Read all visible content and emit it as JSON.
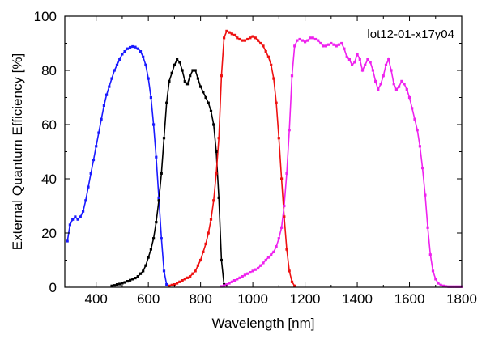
{
  "chart_data": {
    "type": "line",
    "title": "",
    "annotation": "lot12-01-x17y04",
    "xlabel": "Wavelength [nm]",
    "ylabel": "External Quantum Efficiency [%]",
    "xlim": [
      280,
      1800
    ],
    "ylim": [
      0,
      100
    ],
    "xticks": [
      400,
      600,
      800,
      1000,
      1200,
      1400,
      1600,
      1800
    ],
    "yticks": [
      0,
      20,
      40,
      60,
      80,
      100
    ],
    "grid": false,
    "legend": "none",
    "marker": "square",
    "series": [
      {
        "color": "#1a1aff",
        "x": [
          290,
          300,
          310,
          320,
          330,
          340,
          350,
          360,
          370,
          380,
          390,
          400,
          410,
          420,
          430,
          440,
          450,
          460,
          470,
          480,
          490,
          500,
          510,
          520,
          530,
          540,
          550,
          560,
          570,
          580,
          590,
          600,
          610,
          620,
          630,
          640,
          650,
          660,
          670
        ],
        "y": [
          17,
          23,
          25,
          26,
          25,
          26,
          28,
          32,
          37,
          42,
          47,
          52,
          57,
          62,
          67,
          71,
          74,
          77,
          80,
          82,
          84,
          86,
          87,
          88,
          88.5,
          88.8,
          88.6,
          88,
          87,
          85,
          82,
          77,
          70,
          60,
          48,
          33,
          18,
          6,
          1
        ]
      },
      {
        "color": "#000000",
        "x": [
          460,
          470,
          480,
          490,
          500,
          510,
          520,
          530,
          540,
          550,
          560,
          570,
          580,
          590,
          600,
          610,
          620,
          630,
          640,
          650,
          660,
          670,
          680,
          690,
          700,
          710,
          720,
          730,
          740,
          750,
          760,
          770,
          780,
          790,
          800,
          810,
          820,
          830,
          840,
          850,
          860,
          870,
          880,
          890
        ],
        "y": [
          0.5,
          0.7,
          1,
          1.2,
          1.5,
          1.8,
          2.2,
          2.6,
          3,
          3.4,
          4,
          5,
          6,
          8,
          11,
          14,
          18,
          24,
          32,
          42,
          55,
          68,
          76,
          79,
          82,
          84,
          83,
          80,
          76,
          75,
          78,
          80,
          80,
          77,
          74,
          72,
          70,
          68,
          65,
          60,
          50,
          33,
          10,
          1
        ]
      },
      {
        "color": "#ee1111",
        "x": [
          680,
          690,
          700,
          710,
          720,
          730,
          740,
          750,
          760,
          770,
          780,
          790,
          800,
          810,
          820,
          830,
          840,
          850,
          860,
          870,
          880,
          890,
          900,
          910,
          920,
          930,
          940,
          950,
          960,
          970,
          980,
          990,
          1000,
          1010,
          1020,
          1030,
          1040,
          1050,
          1060,
          1070,
          1080,
          1090,
          1100,
          1110,
          1120,
          1130,
          1140,
          1150,
          1160
        ],
        "y": [
          0.5,
          0.8,
          1,
          1.5,
          2,
          2.5,
          3,
          3.5,
          4,
          5,
          6,
          8,
          10,
          13,
          16,
          20,
          25,
          32,
          42,
          55,
          78,
          92,
          94.5,
          94,
          93.5,
          93,
          92,
          91.5,
          91,
          91,
          91.5,
          92,
          92.5,
          92,
          91,
          90,
          89,
          87,
          85,
          82,
          77,
          68,
          55,
          40,
          26,
          14,
          6,
          2,
          0.5
        ]
      },
      {
        "color": "#ee22ee",
        "x": [
          880,
          890,
          900,
          910,
          920,
          930,
          940,
          950,
          960,
          970,
          980,
          990,
          1000,
          1010,
          1020,
          1030,
          1040,
          1050,
          1060,
          1070,
          1080,
          1090,
          1100,
          1110,
          1120,
          1130,
          1140,
          1150,
          1160,
          1170,
          1180,
          1190,
          1200,
          1210,
          1220,
          1230,
          1240,
          1250,
          1260,
          1270,
          1280,
          1290,
          1300,
          1310,
          1320,
          1330,
          1340,
          1350,
          1360,
          1370,
          1380,
          1390,
          1400,
          1410,
          1420,
          1430,
          1440,
          1450,
          1460,
          1470,
          1480,
          1490,
          1500,
          1510,
          1520,
          1530,
          1540,
          1550,
          1560,
          1570,
          1580,
          1590,
          1600,
          1610,
          1620,
          1630,
          1640,
          1650,
          1660,
          1670,
          1680,
          1690,
          1700,
          1710,
          1720,
          1730,
          1740,
          1750,
          1760,
          1770,
          1780,
          1790,
          1800
        ],
        "y": [
          0.3,
          0.6,
          1,
          1.5,
          2,
          2.5,
          3,
          3.5,
          4,
          4.5,
          5,
          5.5,
          6,
          6.5,
          7,
          8,
          9,
          10,
          11,
          12,
          13,
          15,
          18,
          22,
          30,
          42,
          58,
          78,
          89,
          91,
          91.5,
          91,
          90.5,
          91,
          92,
          92,
          91.5,
          91,
          90,
          89,
          89,
          89.5,
          90,
          89.5,
          89,
          89.5,
          90,
          88,
          85,
          84,
          82,
          83,
          86,
          84,
          80,
          82,
          84,
          83,
          80,
          76,
          73,
          75,
          78,
          82,
          84,
          80,
          75,
          73,
          74,
          76,
          75,
          73,
          70,
          66,
          62,
          58,
          52,
          44,
          34,
          22,
          12,
          6,
          3,
          1.5,
          0.8,
          0.5,
          0.3,
          0.2,
          0.2,
          0.2,
          0.2,
          0.2,
          0.2
        ]
      }
    ]
  }
}
